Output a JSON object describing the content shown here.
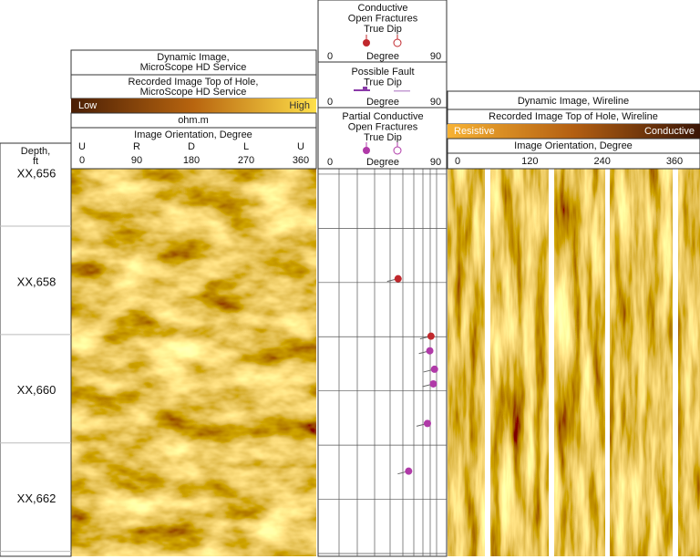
{
  "depth_track": {
    "header_lines": [
      "Depth,",
      "ft"
    ],
    "lim": [
      655.9,
      663.05
    ],
    "ticks": [
      {
        "value": 656,
        "label": "XX,656"
      },
      {
        "value": 658,
        "label": "XX,658"
      },
      {
        "value": 660,
        "label": "XX,660"
      },
      {
        "value": 662,
        "label": "XX,662"
      }
    ]
  },
  "microscope_track": {
    "title_lines": [
      "Dynamic Image,",
      "MicroScope HD Service"
    ],
    "recorded_lines": [
      "Recorded Image Top of Hole,",
      "MicroScope HD Service"
    ],
    "scale_low": "Low",
    "scale_high": "High",
    "unit": "ohm.m",
    "orientation_title": "Image Orientation, Degree",
    "orientation_letters": [
      "U",
      "R",
      "D",
      "L",
      "U"
    ],
    "xlim": [
      0,
      360
    ],
    "xticks": [
      0,
      90,
      180,
      270,
      360
    ]
  },
  "dip_track": {
    "xlim": [
      0,
      90
    ],
    "sections": [
      {
        "title_lines": [
          "Conductive",
          "Open Fractures",
          "True Dip"
        ],
        "color": "#c0282d",
        "axis_label": "Degree",
        "xticks": [
          0,
          90
        ]
      },
      {
        "title_lines": [
          "Possible Fault",
          "True Dip"
        ],
        "color": "#8a3aa8",
        "axis_label": "Degree",
        "xticks": [
          0,
          90
        ]
      },
      {
        "title_lines": [
          "Partial Conductive",
          "Open Fractures",
          "True Dip"
        ],
        "color": "#b03aa8",
        "axis_label": "Degree",
        "xticks": [
          0,
          90
        ]
      }
    ],
    "conductive_fractures": {
      "color": "#c0282d",
      "depth": [
        657.93,
        658.99
      ],
      "dip": [
        58,
        86
      ]
    },
    "partial_fractures": {
      "color": "#b03aa8",
      "depth": [
        659.26,
        659.6,
        659.87,
        660.6,
        661.48
      ],
      "dip": [
        85,
        89,
        88,
        83,
        67
      ]
    }
  },
  "wireline_track": {
    "title": "Dynamic Image, Wireline",
    "recorded": "Recorded Image Top of Hole, Wireline",
    "scale_low": "Resistive",
    "scale_high": "Conductive",
    "orientation_title": "Image Orientation, Degree",
    "xlim": [
      0,
      360
    ],
    "xticks": [
      0,
      120,
      240,
      360
    ]
  }
}
